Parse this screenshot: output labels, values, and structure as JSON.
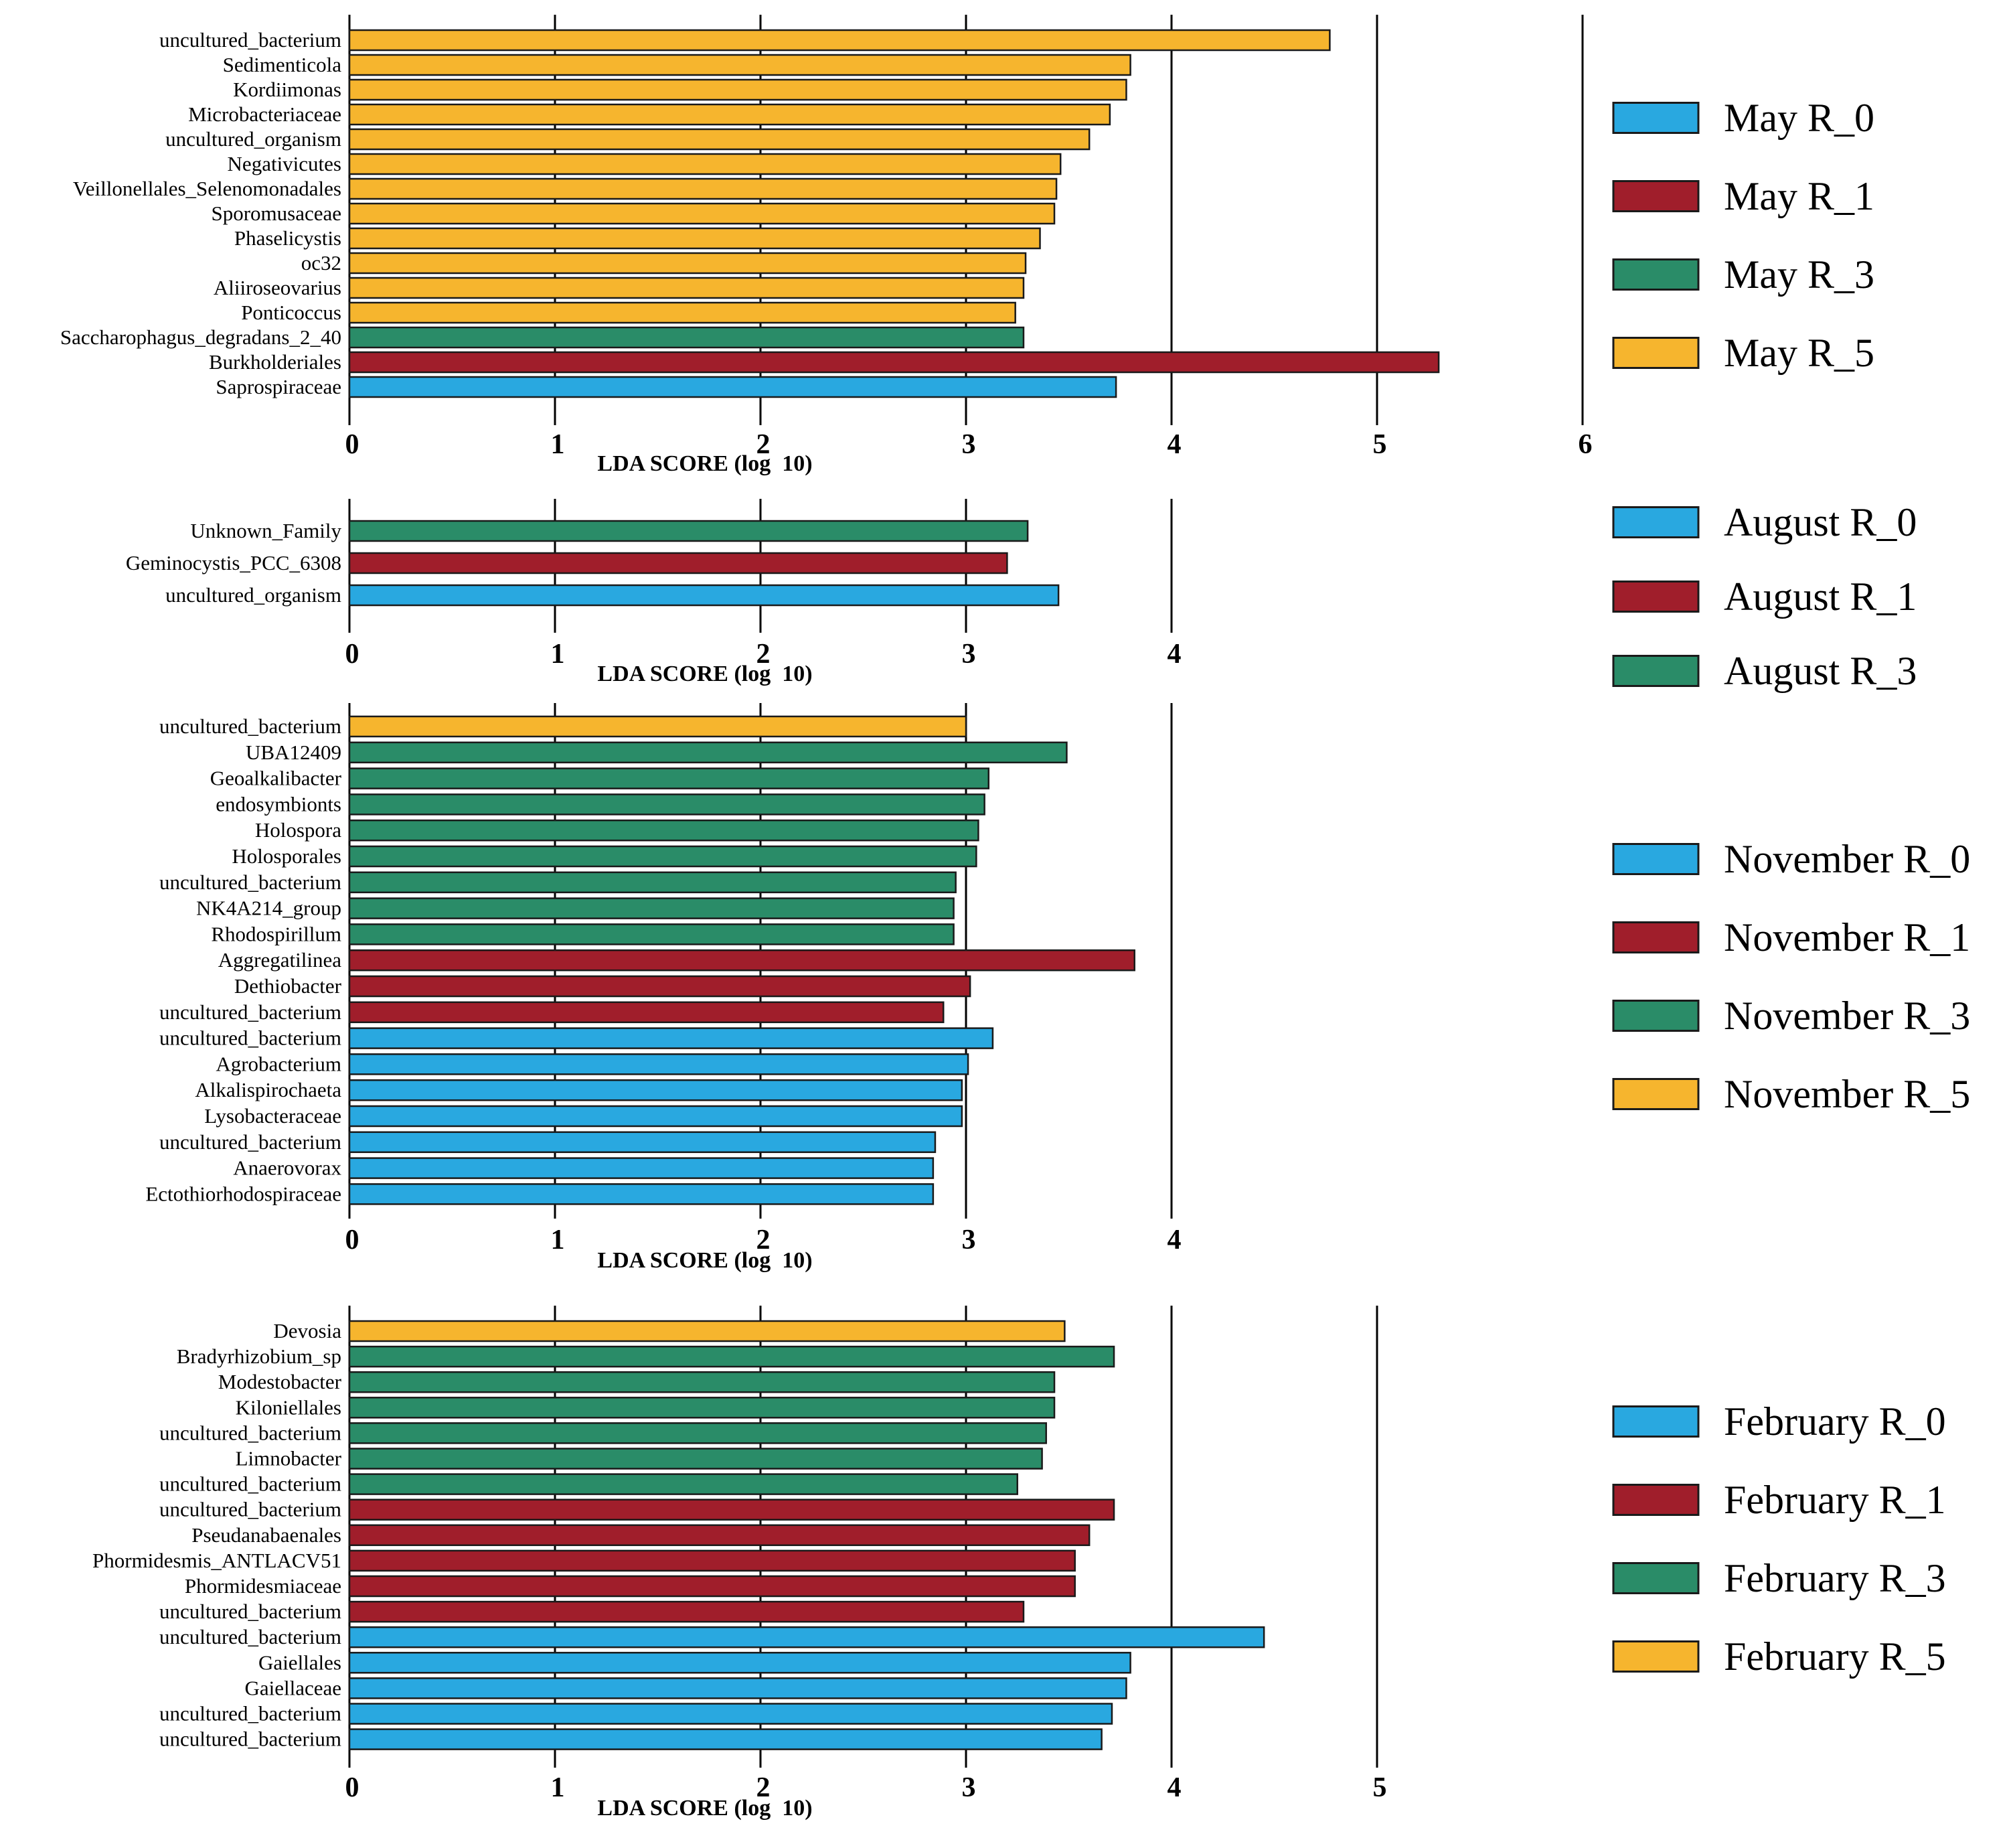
{
  "colors": {
    "R_0": "#29a8e0",
    "R_1": "#a01e2b",
    "R_3": "#2a8c68",
    "R_5": "#f6b52e"
  },
  "chart_data": [
    {
      "type": "bar",
      "orientation": "horizontal",
      "title": "May",
      "xlabel": "LDA SCORE (log  10)",
      "xlim": [
        0,
        6
      ],
      "ticks": [
        0,
        1,
        2,
        3,
        4,
        5,
        6
      ],
      "categories": [
        "uncultured_bacterium",
        "Sedimenticola",
        "Kordiimonas",
        "Microbacteriaceae",
        "uncultured_organism",
        "Negativicutes",
        "Veillonellales_Selenomonadales",
        "Sporomusaceae",
        "Phaselicystis",
        "oc32",
        "Aliiroseovarius",
        "Ponticoccus",
        "Saccharophagus_degradans_2_40",
        "Burkholderiales",
        "Saprospiraceae"
      ],
      "values": [
        4.77,
        3.8,
        3.78,
        3.7,
        3.6,
        3.46,
        3.44,
        3.43,
        3.36,
        3.29,
        3.28,
        3.24,
        3.28,
        5.3,
        3.73
      ],
      "groups": [
        "R_5",
        "R_5",
        "R_5",
        "R_5",
        "R_5",
        "R_5",
        "R_5",
        "R_5",
        "R_5",
        "R_5",
        "R_5",
        "R_5",
        "R_3",
        "R_1",
        "R_0"
      ],
      "legend": [
        {
          "label": "May R_0",
          "group": "R_0"
        },
        {
          "label": "May R_1",
          "group": "R_1"
        },
        {
          "label": "May R_3",
          "group": "R_3"
        },
        {
          "label": "May R_5",
          "group": "R_5"
        }
      ]
    },
    {
      "type": "bar",
      "orientation": "horizontal",
      "title": "August",
      "xlabel": "LDA SCORE (log  10)",
      "xlim": [
        0,
        4
      ],
      "ticks": [
        0,
        1,
        2,
        3,
        4
      ],
      "categories": [
        "Unknown_Family",
        "Geminocystis_PCC_6308",
        "uncultured_organism"
      ],
      "values": [
        3.3,
        3.2,
        3.45
      ],
      "groups": [
        "R_3",
        "R_1",
        "R_0"
      ],
      "legend": [
        {
          "label": "August R_0",
          "group": "R_0"
        },
        {
          "label": "August R_1",
          "group": "R_1"
        },
        {
          "label": "August R_3",
          "group": "R_3"
        }
      ]
    },
    {
      "type": "bar",
      "orientation": "horizontal",
      "title": "November",
      "xlabel": "LDA SCORE (log  10)",
      "xlim": [
        0,
        4
      ],
      "ticks": [
        0,
        1,
        2,
        3,
        4
      ],
      "categories": [
        "uncultured_bacterium",
        "UBA12409",
        "Geoalkalibacter",
        "endosymbionts",
        "Holospora",
        "Holosporales",
        "uncultured_bacterium",
        "NK4A214_group",
        "Rhodospirillum",
        "Aggregatilinea",
        "Dethiobacter",
        "uncultured_bacterium",
        "uncultured_bacterium",
        "Agrobacterium",
        "Alkalispirochaeta",
        "Lysobacteraceae",
        "uncultured_bacterium",
        "Anaerovorax",
        "Ectothiorhodospiraceae"
      ],
      "values": [
        3.0,
        3.49,
        3.11,
        3.09,
        3.06,
        3.05,
        2.95,
        2.94,
        2.94,
        3.82,
        3.02,
        2.89,
        3.13,
        3.01,
        2.98,
        2.98,
        2.85,
        2.84,
        2.84
      ],
      "groups": [
        "R_5",
        "R_3",
        "R_3",
        "R_3",
        "R_3",
        "R_3",
        "R_3",
        "R_3",
        "R_3",
        "R_1",
        "R_1",
        "R_1",
        "R_0",
        "R_0",
        "R_0",
        "R_0",
        "R_0",
        "R_0",
        "R_0"
      ],
      "legend": [
        {
          "label": "November R_0",
          "group": "R_0"
        },
        {
          "label": "November R_1",
          "group": "R_1"
        },
        {
          "label": "November R_3",
          "group": "R_3"
        },
        {
          "label": "November R_5",
          "group": "R_5"
        }
      ]
    },
    {
      "type": "bar",
      "orientation": "horizontal",
      "title": "February",
      "xlabel": "LDA SCORE (log  10)",
      "xlim": [
        0,
        5
      ],
      "ticks": [
        0,
        1,
        2,
        3,
        4,
        5
      ],
      "categories": [
        "Devosia",
        "Bradyrhizobium_sp",
        "Modestobacter",
        "Kiloniellales",
        "uncultured_bacterium",
        "Limnobacter",
        "uncultured_bacterium",
        "uncultured_bacterium",
        "Pseudanabaenales",
        "Phormidesmis_ANTLACV51",
        "Phormidesmiaceae",
        "uncultured_bacterium",
        "uncultured_bacterium",
        "Gaiellales",
        "Gaiellaceae",
        "uncultured_bacterium",
        "uncultured_bacterium"
      ],
      "values": [
        3.48,
        3.72,
        3.43,
        3.43,
        3.39,
        3.37,
        3.25,
        3.72,
        3.6,
        3.53,
        3.53,
        3.28,
        4.45,
        3.8,
        3.78,
        3.71,
        3.66
      ],
      "groups": [
        "R_5",
        "R_3",
        "R_3",
        "R_3",
        "R_3",
        "R_3",
        "R_3",
        "R_1",
        "R_1",
        "R_1",
        "R_1",
        "R_1",
        "R_0",
        "R_0",
        "R_0",
        "R_0",
        "R_0"
      ],
      "legend": [
        {
          "label": "February R_0",
          "group": "R_0"
        },
        {
          "label": "February R_1",
          "group": "R_1"
        },
        {
          "label": "February R_3",
          "group": "R_3"
        },
        {
          "label": "February R_5",
          "group": "R_5"
        }
      ]
    }
  ]
}
